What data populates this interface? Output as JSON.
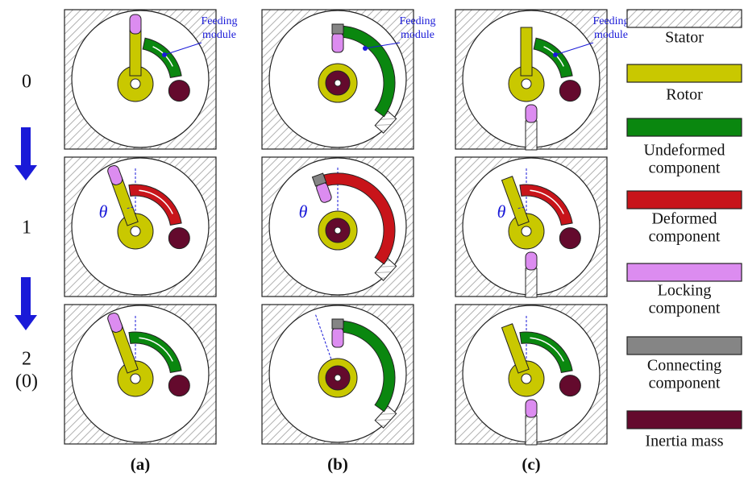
{
  "row_labels": [
    [
      "0"
    ],
    [
      "1"
    ],
    [
      "2",
      "(0)"
    ]
  ],
  "column_labels": [
    "(a)",
    "(b)",
    "(c)"
  ],
  "feeding_labels": [
    [
      "Feeding",
      "module"
    ],
    [
      "Feeding",
      "module"
    ],
    [
      "Feeding",
      "module"
    ]
  ],
  "theta_labels": [
    "θ",
    "θ",
    "θ"
  ],
  "legend": {
    "items": [
      {
        "label": [
          "Stator"
        ]
      },
      {
        "label": [
          "Rotor"
        ],
        "color": "#c9c800"
      },
      {
        "label": [
          "Undeformed",
          "component"
        ],
        "color": "#0a870f"
      },
      {
        "label": [
          "Deformed",
          "component"
        ],
        "color": "#c8141a"
      },
      {
        "label": [
          "Locking",
          "component"
        ],
        "color": "#dc8cf0"
      },
      {
        "label": [
          "Connecting",
          "component"
        ],
        "color": "#858585"
      },
      {
        "label": [
          "Inertia mass"
        ],
        "color": "#640a2d"
      }
    ]
  }
}
